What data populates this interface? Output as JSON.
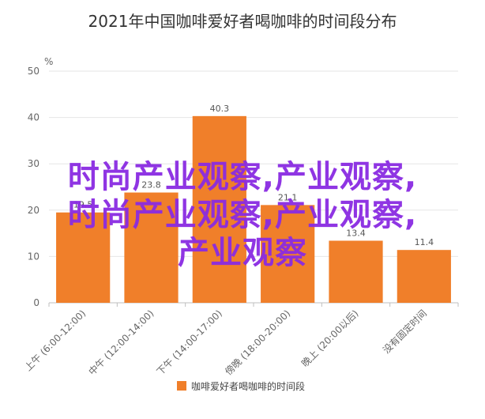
{
  "chart_data": {
    "type": "bar",
    "title": "2021年中国咖啡爱好者喝咖啡的时间段分布",
    "ylabel": "%",
    "ylim": [
      0,
      50
    ],
    "yticks": [
      0,
      10,
      20,
      30,
      40,
      50
    ],
    "grid": true,
    "legend_position": "bottom",
    "categories": [
      "上午 (6:00-12:00)",
      "中午 (12:00-14:00)",
      "下午 (14:00-17:00)",
      "傍晚 (18:00-20:00)",
      "晚上 (20:00以后)",
      "没有固定时间"
    ],
    "series": [
      {
        "name": "咖啡爱好者喝咖啡的时间段",
        "values": [
          19.5,
          23.8,
          40.3,
          21.1,
          13.4,
          11.4
        ],
        "color": "#f07f2a"
      }
    ]
  },
  "overlay": {
    "line1": "时尚产业观察,产业观察,",
    "line2": "时尚产业观察,产业观察,",
    "line3": "产业观察"
  }
}
